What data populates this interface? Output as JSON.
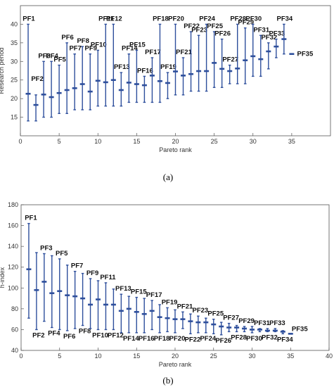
{
  "chart_data": [
    {
      "type": "errorbar",
      "caption": "(a)",
      "xlabel": "Pareto rank",
      "ylabel": "Research period",
      "xlim": [
        0,
        40
      ],
      "ylim": [
        10,
        45
      ],
      "xticks": [
        0,
        5,
        10,
        15,
        20,
        25,
        30,
        35
      ],
      "yticks": [
        15,
        20,
        25,
        30,
        35,
        40
      ],
      "grid": false,
      "points": [
        {
          "label": "PF1",
          "x": 1,
          "low": 14,
          "high": 40,
          "mid": 21.3
        },
        {
          "label": "PF2",
          "x": 2,
          "low": 14,
          "high": 21,
          "mid": 18.3
        },
        {
          "label": "PF3",
          "x": 3,
          "low": 15,
          "high": 30,
          "mid": 21.1
        },
        {
          "label": "PF4",
          "x": 4,
          "low": 15,
          "high": 30,
          "mid": 20.4
        },
        {
          "label": "PF5",
          "x": 5,
          "low": 16,
          "high": 29,
          "mid": 21.5
        },
        {
          "label": "PF6",
          "x": 6,
          "low": 16,
          "high": 35,
          "mid": 22.3
        },
        {
          "label": "PF7",
          "x": 7,
          "low": 17,
          "high": 32,
          "mid": 22.8
        },
        {
          "label": "PF8",
          "x": 8,
          "low": 17,
          "high": 34,
          "mid": 23.9
        },
        {
          "label": "PF9",
          "x": 9,
          "low": 17,
          "high": 32,
          "mid": 21.9
        },
        {
          "label": "PF10",
          "x": 10,
          "low": 18,
          "high": 33,
          "mid": 24.8
        },
        {
          "label": "PF11",
          "x": 11,
          "low": 18,
          "high": 40,
          "mid": 24.4
        },
        {
          "label": "PF12",
          "x": 12,
          "low": 18,
          "high": 40,
          "mid": 25
        },
        {
          "label": "PF13",
          "x": 13,
          "low": 18,
          "high": 27,
          "mid": 22.3
        },
        {
          "label": "PF14",
          "x": 14,
          "low": 19,
          "high": 32,
          "mid": 24.3
        },
        {
          "label": "PF15",
          "x": 15,
          "low": 19,
          "high": 33,
          "mid": 23.9
        },
        {
          "label": "PF16",
          "x": 16,
          "low": 19,
          "high": 26,
          "mid": 23.6
        },
        {
          "label": "PF17",
          "x": 17,
          "low": 19,
          "high": 31,
          "mid": 26.2
        },
        {
          "label": "PF18",
          "x": 18,
          "low": 19,
          "high": 40,
          "mid": 24.7
        },
        {
          "label": "PF19",
          "x": 19,
          "low": 20,
          "high": 27,
          "mid": 24.2
        },
        {
          "label": "PF20",
          "x": 20,
          "low": 21,
          "high": 40,
          "mid": 27.3
        },
        {
          "label": "PF21",
          "x": 21,
          "low": 21,
          "high": 31,
          "mid": 26.2
        },
        {
          "label": "PF22",
          "x": 22,
          "low": 22,
          "high": 38,
          "mid": 26.6
        },
        {
          "label": "PF23",
          "x": 23,
          "low": 22,
          "high": 37,
          "mid": 27.4
        },
        {
          "label": "PF24",
          "x": 24,
          "low": 22,
          "high": 40,
          "mid": 27.4
        },
        {
          "label": "PF25",
          "x": 25,
          "low": 23,
          "high": 38,
          "mid": 29.6
        },
        {
          "label": "PF26",
          "x": 26,
          "low": 23,
          "high": 36,
          "mid": 28
        },
        {
          "label": "PF27",
          "x": 27,
          "low": 24,
          "high": 29,
          "mid": 27.4
        },
        {
          "label": "PF28",
          "x": 28,
          "low": 24,
          "high": 40,
          "mid": 28.1
        },
        {
          "label": "PF29",
          "x": 29,
          "low": 24,
          "high": 39,
          "mid": 30.3
        },
        {
          "label": "PF30",
          "x": 30,
          "low": 26,
          "high": 40,
          "mid": 31.4
        },
        {
          "label": "PF31",
          "x": 31,
          "low": 26,
          "high": 37,
          "mid": 30.6
        },
        {
          "label": "PF32",
          "x": 32,
          "low": 28,
          "high": 35,
          "mid": 32.7
        },
        {
          "label": "PF33",
          "x": 33,
          "low": 31,
          "high": 36,
          "mid": 34
        },
        {
          "label": "PF34",
          "x": 34,
          "low": 32,
          "high": 40,
          "mid": 36
        },
        {
          "label": "PF35",
          "x": 35,
          "low": 32,
          "high": 32,
          "mid": 32
        }
      ]
    },
    {
      "type": "errorbar",
      "caption": "(b)",
      "xlabel": "Pareto rank",
      "ylabel": "h-index",
      "xlim": [
        0,
        40
      ],
      "ylim": [
        40,
        180
      ],
      "xticks": [
        0,
        5,
        10,
        15,
        20,
        25,
        30,
        35,
        40
      ],
      "yticks": [
        40,
        60,
        80,
        100,
        120,
        140,
        160,
        180
      ],
      "grid": false,
      "points": [
        {
          "label": "PF1",
          "x": 1,
          "low": 71,
          "high": 162,
          "mid": 118
        },
        {
          "label": "PF2",
          "x": 2,
          "low": 60,
          "high": 134,
          "mid": 98
        },
        {
          "label": "PF3",
          "x": 3,
          "low": 68,
          "high": 133,
          "mid": 106
        },
        {
          "label": "PF4",
          "x": 4,
          "low": 62,
          "high": 131,
          "mid": 95
        },
        {
          "label": "PF5",
          "x": 5,
          "low": 60,
          "high": 128,
          "mid": 97
        },
        {
          "label": "PF6",
          "x": 6,
          "low": 59,
          "high": 122,
          "mid": 93
        },
        {
          "label": "PF7",
          "x": 7,
          "low": 61,
          "high": 116,
          "mid": 92
        },
        {
          "label": "PF8",
          "x": 8,
          "low": 64,
          "high": 114,
          "mid": 90
        },
        {
          "label": "PF9",
          "x": 9,
          "low": 61,
          "high": 109,
          "mid": 84
        },
        {
          "label": "PF10",
          "x": 10,
          "low": 60,
          "high": 107,
          "mid": 89
        },
        {
          "label": "PF11",
          "x": 11,
          "low": 60,
          "high": 105,
          "mid": 84
        },
        {
          "label": "PF12",
          "x": 12,
          "low": 60,
          "high": 99,
          "mid": 84
        },
        {
          "label": "PF13",
          "x": 13,
          "low": 57,
          "high": 94,
          "mid": 78
        },
        {
          "label": "PF14",
          "x": 14,
          "low": 57,
          "high": 92,
          "mid": 80
        },
        {
          "label": "PF15",
          "x": 15,
          "low": 57,
          "high": 91,
          "mid": 77
        },
        {
          "label": "PF16",
          "x": 16,
          "low": 57,
          "high": 90,
          "mid": 75
        },
        {
          "label": "PF17",
          "x": 17,
          "low": 60,
          "high": 88,
          "mid": 78
        },
        {
          "label": "PF18",
          "x": 18,
          "low": 57,
          "high": 84,
          "mid": 72
        },
        {
          "label": "PF19",
          "x": 19,
          "low": 58,
          "high": 81,
          "mid": 71
        },
        {
          "label": "PF20",
          "x": 20,
          "low": 57,
          "high": 79,
          "mid": 70
        },
        {
          "label": "PF21",
          "x": 21,
          "low": 61,
          "high": 77,
          "mid": 70
        },
        {
          "label": "PF22",
          "x": 22,
          "low": 56,
          "high": 75,
          "mid": 68
        },
        {
          "label": "PF23",
          "x": 23,
          "low": 57,
          "high": 73,
          "mid": 67
        },
        {
          "label": "PF24",
          "x": 24,
          "low": 57,
          "high": 71,
          "mid": 67
        },
        {
          "label": "PF25",
          "x": 25,
          "low": 56,
          "high": 70,
          "mid": 65
        },
        {
          "label": "PF26",
          "x": 26,
          "low": 55,
          "high": 67,
          "mid": 63
        },
        {
          "label": "PF27",
          "x": 27,
          "low": 58,
          "high": 66,
          "mid": 62
        },
        {
          "label": "PF28",
          "x": 28,
          "low": 58,
          "high": 64,
          "mid": 62
        },
        {
          "label": "PF29",
          "x": 29,
          "low": 58,
          "high": 63,
          "mid": 61
        },
        {
          "label": "PF30",
          "x": 30,
          "low": 57,
          "high": 63,
          "mid": 60
        },
        {
          "label": "PF31",
          "x": 31,
          "low": 58,
          "high": 61,
          "mid": 60
        },
        {
          "label": "PF32",
          "x": 32,
          "low": 58,
          "high": 61,
          "mid": 59
        },
        {
          "label": "PF33",
          "x": 33,
          "low": 58,
          "high": 61,
          "mid": 59
        },
        {
          "label": "PF34",
          "x": 34,
          "low": 56,
          "high": 59,
          "mid": 58
        },
        {
          "label": "PF35",
          "x": 35,
          "low": 56,
          "high": 56,
          "mid": 56
        }
      ]
    }
  ],
  "colors": {
    "series": "#2e4f9c",
    "axes": "#555555",
    "labels": "#111111"
  }
}
